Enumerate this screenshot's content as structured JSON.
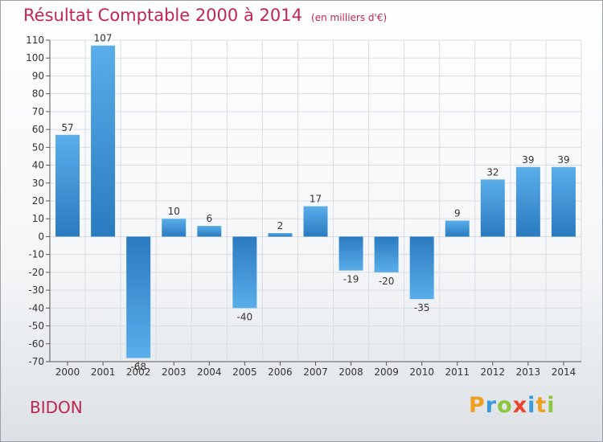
{
  "chart_data": {
    "type": "bar",
    "title": "Résultat Comptable 2000 à 2014",
    "subtitle": "(en milliers d'€)",
    "categories": [
      "2000",
      "2001",
      "2002",
      "2003",
      "2004",
      "2005",
      "2006",
      "2007",
      "2008",
      "2009",
      "2010",
      "2011",
      "2012",
      "2013",
      "2014"
    ],
    "values": [
      57,
      107,
      -68,
      10,
      6,
      -40,
      2,
      17,
      -19,
      -20,
      -35,
      9,
      32,
      39,
      39
    ],
    "ylim": [
      -70,
      110
    ],
    "yticks": [
      110,
      100,
      90,
      80,
      70,
      60,
      50,
      40,
      30,
      20,
      10,
      0,
      -10,
      -20,
      -30,
      -40,
      -50,
      -60,
      -70
    ],
    "grid": true,
    "xlabel": "",
    "ylabel": ""
  },
  "commune": "BIDON",
  "logo": {
    "letters": [
      "P",
      "r",
      "o",
      "x",
      "i",
      "t",
      "i"
    ]
  },
  "colors": {
    "title": "#c0264f",
    "bar_light": "#5aaeea",
    "bar_dark": "#2a7ac0",
    "grid": "#d9dde2",
    "axis": "#555555"
  }
}
